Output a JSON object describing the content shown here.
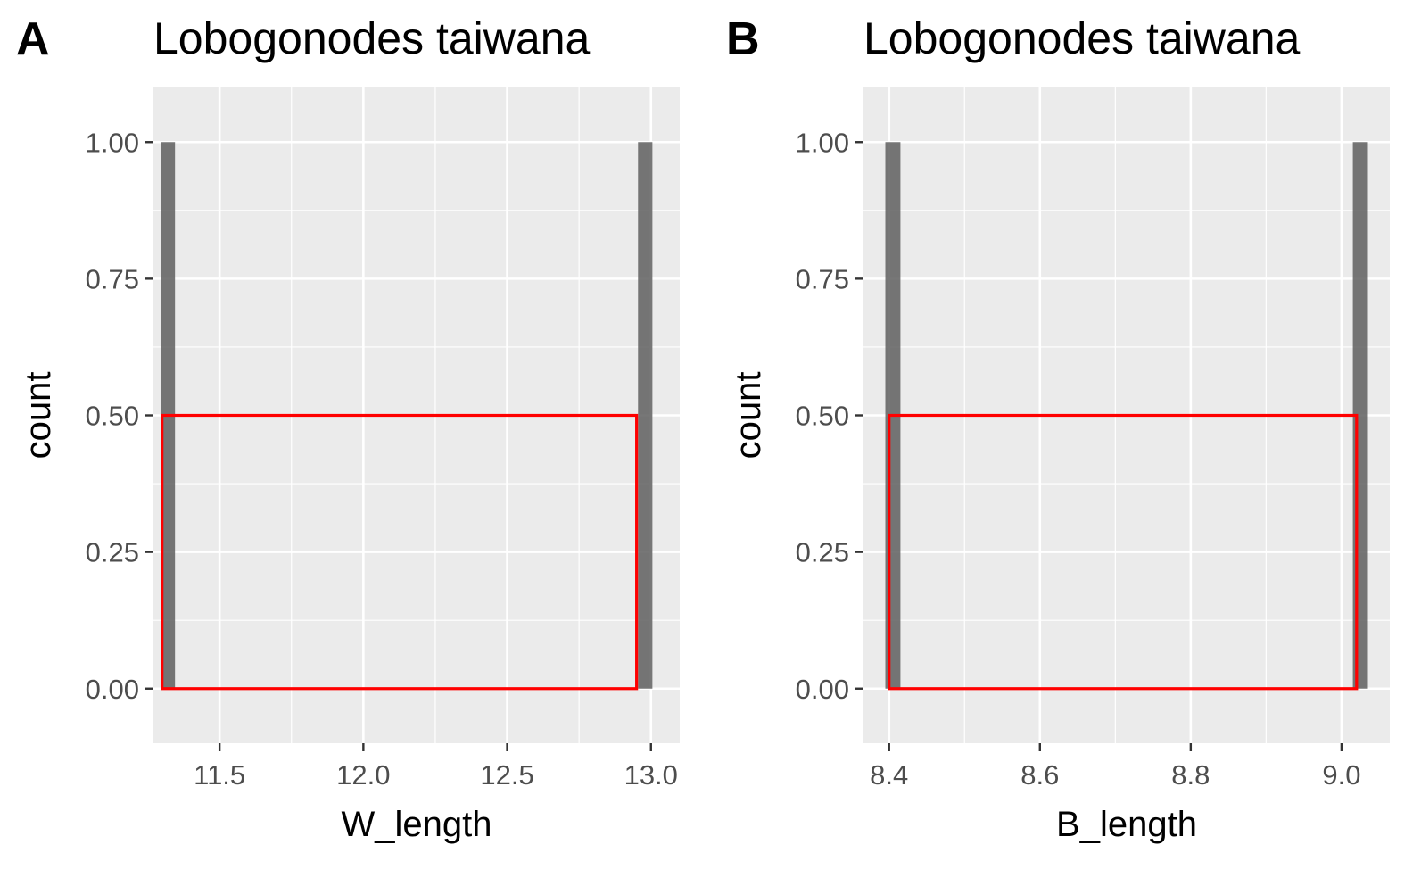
{
  "colors": {
    "panel_bg": "#EBEBEB",
    "grid": "#FFFFFF",
    "bar": "#595959",
    "highlight": "#FF0000",
    "tick_text": "#4D4D4D",
    "axis_title": "#000000"
  },
  "chart_data": [
    {
      "type": "bar",
      "panel_label": "A",
      "title": "Lobogonodes taiwana",
      "xlabel": "W_length",
      "ylabel": "count",
      "x": [
        11.32,
        12.98
      ],
      "values": [
        1,
        1
      ],
      "bin_width": 0.05,
      "xlim": [
        11.27,
        13.1
      ],
      "ylim": [
        -0.1,
        1.1
      ],
      "xticks": [
        11.5,
        12.0,
        12.5,
        13.0
      ],
      "xtick_labels": [
        "11.5",
        "12.0",
        "12.5",
        "13.0"
      ],
      "yticks": [
        0,
        0.25,
        0.5,
        0.75,
        1.0
      ],
      "ytick_labels": [
        "0.00",
        "0.25",
        "0.50",
        "0.75",
        "1.00"
      ],
      "grid": true,
      "highlight_rect": {
        "x0": 11.3,
        "x1": 12.95,
        "y0": 0,
        "y1": 0.5
      }
    },
    {
      "type": "bar",
      "panel_label": "B",
      "title": "Lobogonodes taiwana",
      "xlabel": "B_length",
      "ylabel": "count",
      "x": [
        8.405,
        9.025
      ],
      "values": [
        1,
        1
      ],
      "bin_width": 0.02,
      "xlim": [
        8.366,
        9.064
      ],
      "ylim": [
        -0.1,
        1.1
      ],
      "xticks": [
        8.4,
        8.6,
        8.8,
        9.0
      ],
      "xtick_labels": [
        "8.4",
        "8.6",
        "8.8",
        "9.0"
      ],
      "yticks": [
        0,
        0.25,
        0.5,
        0.75,
        1.0
      ],
      "ytick_labels": [
        "0.00",
        "0.25",
        "0.50",
        "0.75",
        "1.00"
      ],
      "grid": true,
      "highlight_rect": {
        "x0": 8.4,
        "x1": 9.02,
        "y0": 0,
        "y1": 0.5
      }
    }
  ]
}
